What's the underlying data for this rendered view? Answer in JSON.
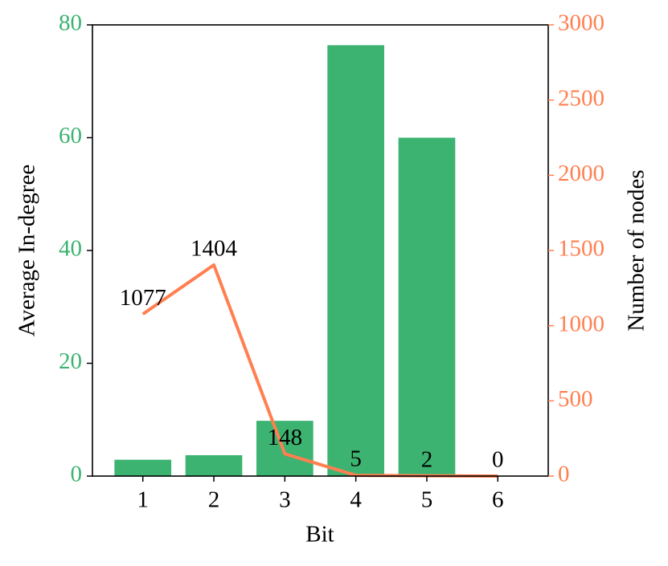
{
  "chart_data": {
    "type": "bar",
    "x_label": "Bit",
    "y_label": "Average In-degree",
    "y2_label": "Number of nodes",
    "categories": [
      "1",
      "2",
      "3",
      "4",
      "5",
      "6"
    ],
    "series": [
      {
        "type": "bar",
        "color": "#3cb371",
        "values": [
          2.9,
          3.7,
          9.8,
          76.4,
          60,
          0
        ]
      },
      {
        "type": "line",
        "axis": "y2",
        "color": "#ff7f50",
        "values": [
          1077,
          1404,
          148,
          5,
          2,
          0
        ]
      }
    ],
    "ylim": [
      0,
      80
    ],
    "yticks": [
      0,
      20,
      40,
      60,
      80
    ],
    "y2lim": [
      0,
      3000
    ],
    "y2ticks": [
      0,
      500,
      1000,
      1500,
      2000,
      2500,
      3000
    ]
  }
}
